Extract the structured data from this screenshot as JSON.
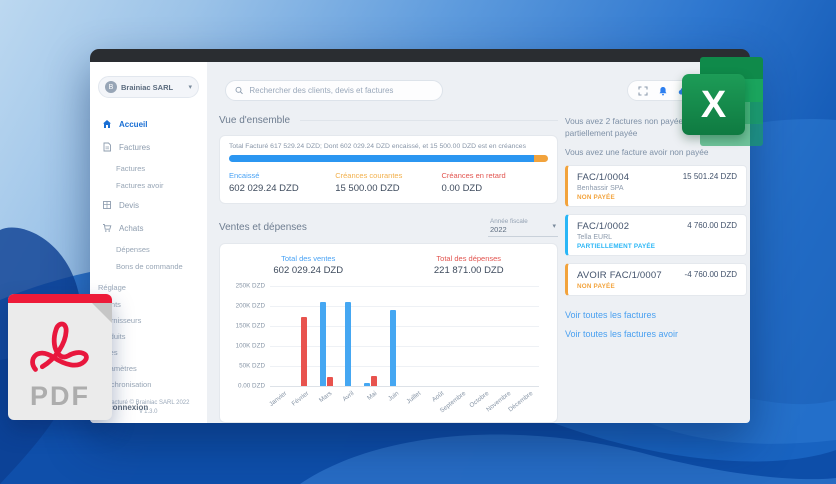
{
  "sidebar": {
    "company": {
      "name": "Brainiac SARL",
      "avatar_letter": "B"
    },
    "items": [
      {
        "label": "Accueil"
      },
      {
        "label": "Factures"
      },
      {
        "label": "Factures"
      },
      {
        "label": "Factures avoir"
      },
      {
        "label": "Devis"
      },
      {
        "label": "Achats"
      },
      {
        "label": "Dépenses"
      },
      {
        "label": "Bons de commande"
      },
      {
        "label": "Réglage"
      },
      {
        "label": "Clients"
      },
      {
        "label": "Fournisseurs"
      },
      {
        "label": "Produits"
      },
      {
        "label": "Taxes"
      },
      {
        "label": "Paramètres"
      },
      {
        "label": "Synchronisation"
      },
      {
        "label": "Déconnexion"
      }
    ],
    "footer_line1": "Facturé © Brainiac SARL 2022",
    "footer_line2": "v 1.3.0"
  },
  "header": {
    "search_placeholder": "Rechercher des clients, devis et factures"
  },
  "overview": {
    "title": "Vue d'ensemble",
    "summary": "Total Facturé 617 529.24 DZD; Dont 602 029.24 DZD encaissé, et 15 500.00 DZD est en créances",
    "progress": {
      "paid_pct": 95.5,
      "due_pct": 4.5,
      "paid_color": "#2b96f1",
      "due_color": "#f2a33c"
    },
    "stats": [
      {
        "label": "Encaissé",
        "value": "602 029.24 DZD",
        "color": "#4aa3f5"
      },
      {
        "label": "Créances courantes",
        "value": "15 500.00 DZD",
        "color": "#f2b04c"
      },
      {
        "label": "Créances en retard",
        "value": "0.00 DZD",
        "color": "#e25550"
      }
    ]
  },
  "sales": {
    "title": "Ventes et dépenses",
    "fiscal_year_label": "Année fiscale",
    "fiscal_year_value": "2022",
    "total_sales_label": "Total des ventes",
    "total_sales_value": "602 029.24 DZD",
    "total_sales_color": "#4aa3f5",
    "total_expenses_label": "Total des dépenses",
    "total_expenses_value": "221 871.00 DZD",
    "total_expenses_color": "#e25550"
  },
  "chart_data": {
    "type": "bar",
    "title": "Ventes et dépenses 2022",
    "categories": [
      "Janvier",
      "Février",
      "Mars",
      "Avril",
      "Mai",
      "Juin",
      "Juillet",
      "Août",
      "Septembre",
      "Octobre",
      "Novembre",
      "Décembre"
    ],
    "series": [
      {
        "name": "Ventes",
        "color": "#45a7f2",
        "values": [
          0,
          0,
          210000,
          210000,
          8000,
          190000,
          0,
          0,
          0,
          0,
          0,
          0
        ]
      },
      {
        "name": "Dépenses",
        "color": "#e8534e",
        "values": [
          0,
          172000,
          23000,
          0,
          26000,
          0,
          0,
          0,
          0,
          0,
          0,
          0
        ]
      }
    ],
    "ylim": [
      0,
      250000
    ],
    "yticks": [
      "250K DZD",
      "200K DZD",
      "150K DZD",
      "100K DZD",
      "50K DZD",
      "0.00 DZD"
    ],
    "xlabel": "",
    "ylabel": "",
    "grid": true,
    "legend_position": "none"
  },
  "invoices": {
    "message1": "Vous avez 2 factures non payées dont une partiellement payée",
    "message2": "Vous avez une facture avoir non payée",
    "cards": [
      {
        "id": "FAC/1/0004",
        "client": "Benhassir SPA",
        "status": "NON PAYÉE",
        "amount": "15 501.24 DZD",
        "accent": "#f2a33c"
      },
      {
        "id": "FAC/1/0002",
        "client": "Tella EURL",
        "status": "PARTIELLEMENT PAYÉE",
        "amount": "4 760.00 DZD",
        "accent": "#29b6f6"
      },
      {
        "id": "AVOIR FAC/1/0007",
        "client": "",
        "status": "NON PAYÉE",
        "amount": "-4 760.00 DZD",
        "accent": "#f2a33c"
      }
    ],
    "links": [
      "Voir toutes les factures",
      "Voir toutes les factures avoir"
    ]
  },
  "overlays": {
    "pdf_label": "PDF",
    "excel_letter": "X"
  }
}
